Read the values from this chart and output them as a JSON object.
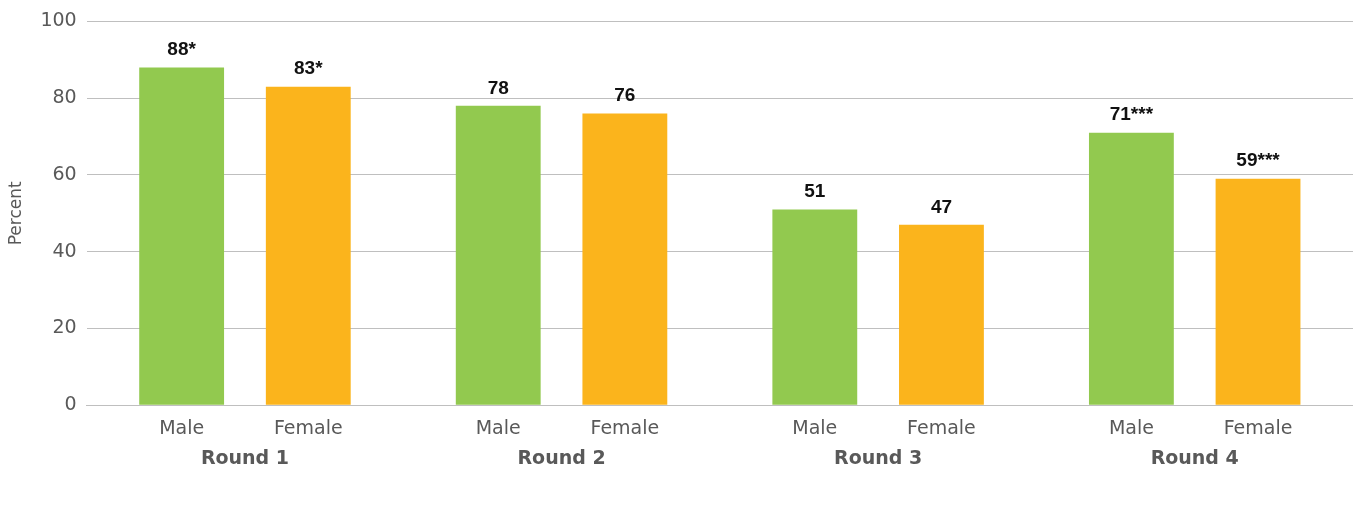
{
  "chart_data": {
    "type": "bar",
    "ylabel": "Percent",
    "categories": [
      "Round 1",
      "Round 2",
      "Round 3",
      "Round 4"
    ],
    "series": [
      {
        "name": "Male",
        "color": "#92c94f",
        "values": [
          88,
          78,
          51,
          71
        ],
        "value_labels": [
          "88*",
          "78",
          "51",
          "71***"
        ]
      },
      {
        "name": "Female",
        "color": "#fbb41c",
        "values": [
          83,
          76,
          47,
          59
        ],
        "value_labels": [
          "83*",
          "76",
          "47",
          "59***"
        ]
      }
    ],
    "ylim": [
      0,
      100
    ],
    "yticks": [
      0,
      20,
      40,
      60,
      80,
      100
    ],
    "grid": "y",
    "legend": false
  }
}
